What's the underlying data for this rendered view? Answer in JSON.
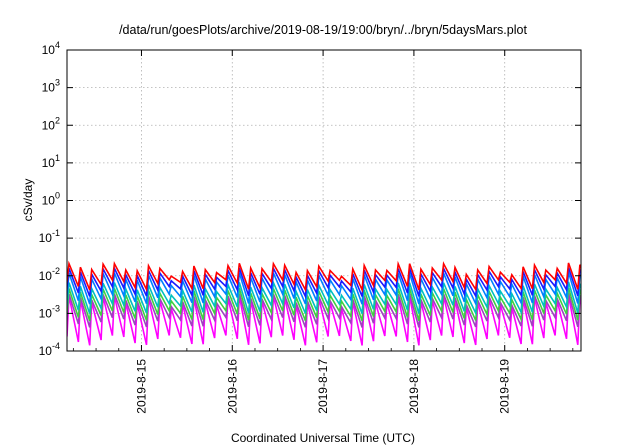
{
  "chart_data": {
    "type": "line",
    "title": "/data/run/goesPlots/archive/2019-08-19/19:00/bryn/../bryn/5daysMars.plot",
    "xlabel": "Coordinated Universal Time (UTC)",
    "ylabel": "cSv/day",
    "y_scale": "log",
    "ylim_exp": [
      -4,
      4
    ],
    "y_ticks": [
      {
        "exp": -4,
        "base": "10",
        "sup": "-4"
      },
      {
        "exp": -3,
        "base": "10",
        "sup": "-3"
      },
      {
        "exp": -2,
        "base": "10",
        "sup": "-2"
      },
      {
        "exp": -1,
        "base": "10",
        "sup": "-1"
      },
      {
        "exp": 0,
        "base": "10",
        "sup": "0"
      },
      {
        "exp": 1,
        "base": "10",
        "sup": "1"
      },
      {
        "exp": 2,
        "base": "10",
        "sup": "2"
      },
      {
        "exp": 3,
        "base": "10",
        "sup": "3"
      },
      {
        "exp": 4,
        "base": "10",
        "sup": "4"
      }
    ],
    "xlim_days": [
      14.18,
      19.84
    ],
    "x_ticks": [
      {
        "day": 15,
        "label": "2019-8-15"
      },
      {
        "day": 16,
        "label": "2019-8-16"
      },
      {
        "day": 17,
        "label": "2019-8-17"
      },
      {
        "day": 18,
        "label": "2019-8-18"
      },
      {
        "day": 19,
        "label": "2019-8-19"
      }
    ],
    "grid": true,
    "legend": "none",
    "series_colors": [
      "#ff0000",
      "#1a1aff",
      "#0080ff",
      "#00c0c0",
      "#40d040",
      "#a040c0",
      "#ff00ff"
    ],
    "cycle_days": 0.125,
    "series": [
      {
        "color": "#ff0000",
        "peak": 0.016,
        "trough": 0.006
      },
      {
        "color": "#1a1aff",
        "peak": 0.012,
        "trough": 0.004
      },
      {
        "color": "#0080ff",
        "peak": 0.009,
        "trough": 0.0025
      },
      {
        "color": "#00c0c0",
        "peak": 0.005,
        "trough": 0.0014
      },
      {
        "color": "#40d040",
        "peak": 0.0035,
        "trough": 0.0009
      },
      {
        "color": "#a040c0",
        "peak": 0.0025,
        "trough": 0.0006
      },
      {
        "color": "#ff00ff",
        "peak": 0.0022,
        "trough": 0.0002
      }
    ]
  }
}
